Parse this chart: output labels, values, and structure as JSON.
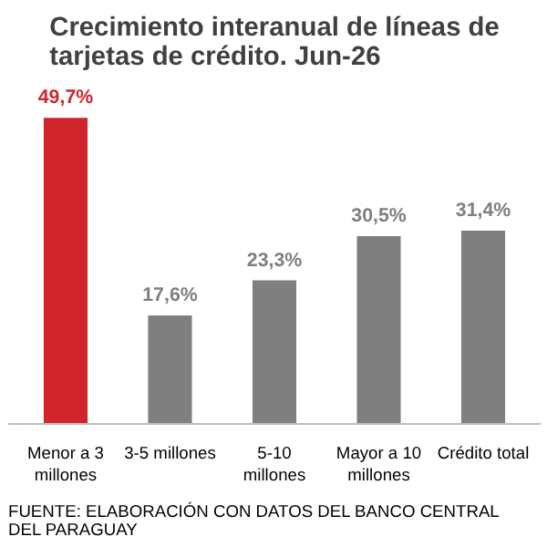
{
  "chart_data": {
    "type": "bar",
    "title": "Crecimiento interanual de líneas de\ntarjetas de crédito. Jun-26",
    "categories": [
      "Menor a 3\nmillones",
      "3-5 millones",
      "5-10\nmillones",
      "Mayor a 10\nmillones",
      "Crédito total"
    ],
    "values": [
      49.7,
      17.6,
      23.3,
      30.5,
      31.4
    ],
    "colors": [
      "#d1252b",
      "#7f7f7f",
      "#7f7f7f",
      "#7f7f7f",
      "#7f7f7f"
    ],
    "value_labels": [
      "49,7%",
      "17,6%",
      "23,3%",
      "30,5%",
      "31,4%"
    ],
    "annotations": [
      "FUENTE: ELABORACIÓN CON DATOS DEL BANCO CENTRAL\nDEL PARAGUAY"
    ],
    "grid": false
  }
}
